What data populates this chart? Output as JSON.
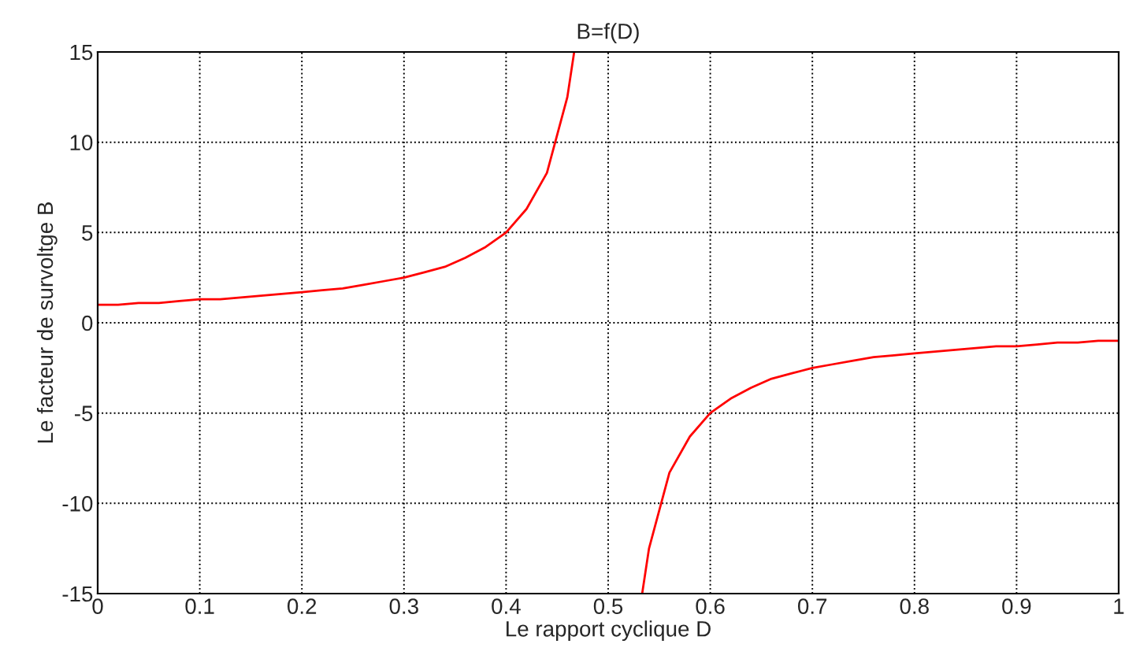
{
  "chart_data": {
    "type": "line",
    "title": "B=f(D)",
    "xlabel": "Le rapport cyclique D",
    "ylabel": "Le facteur de survoltge B",
    "x": [
      0,
      0.02,
      0.04,
      0.06,
      0.08,
      0.1,
      0.12,
      0.14,
      0.16,
      0.18,
      0.2,
      0.22,
      0.24,
      0.26,
      0.28,
      0.3,
      0.32,
      0.34,
      0.36,
      0.38,
      0.4,
      0.42,
      0.44,
      0.46,
      0.4667,
      0.5,
      0.5333,
      0.54,
      0.56,
      0.58,
      0.6,
      0.62,
      0.64,
      0.66,
      0.68,
      0.7,
      0.72,
      0.74,
      0.76,
      0.78,
      0.8,
      0.82,
      0.84,
      0.86,
      0.88,
      0.9,
      0.92,
      0.94,
      0.96,
      0.98,
      1
    ],
    "series": [
      {
        "color": "#ff0000",
        "values": [
          1,
          1,
          1.1,
          1.1,
          1.2,
          1.3,
          1.3,
          1.4,
          1.5,
          1.6,
          1.7,
          1.8,
          1.9,
          2.1,
          2.3,
          2.5,
          2.8,
          3.1,
          3.6,
          4.2,
          5,
          6.3,
          8.3,
          12.5,
          15,
          null,
          -15,
          -12.5,
          -8.3,
          -6.3,
          -5,
          -4.2,
          -3.6,
          -3.1,
          -2.8,
          -2.5,
          -2.3,
          -2.1,
          -1.9,
          -1.8,
          -1.7,
          -1.6,
          -1.5,
          -1.4,
          -1.3,
          -1.3,
          -1.2,
          -1.1,
          -1.1,
          -1,
          -1
        ]
      }
    ],
    "xlim": [
      0,
      1
    ],
    "xticks": [
      0,
      0.1,
      0.2,
      0.3,
      0.4,
      0.5,
      0.6,
      0.7,
      0.8,
      0.9,
      1
    ],
    "ylim": [
      -15,
      15
    ],
    "yticks": [
      -15,
      -10,
      -5,
      0,
      5,
      10,
      15
    ],
    "grid": true,
    "line_style": "solid",
    "marker": "none"
  }
}
